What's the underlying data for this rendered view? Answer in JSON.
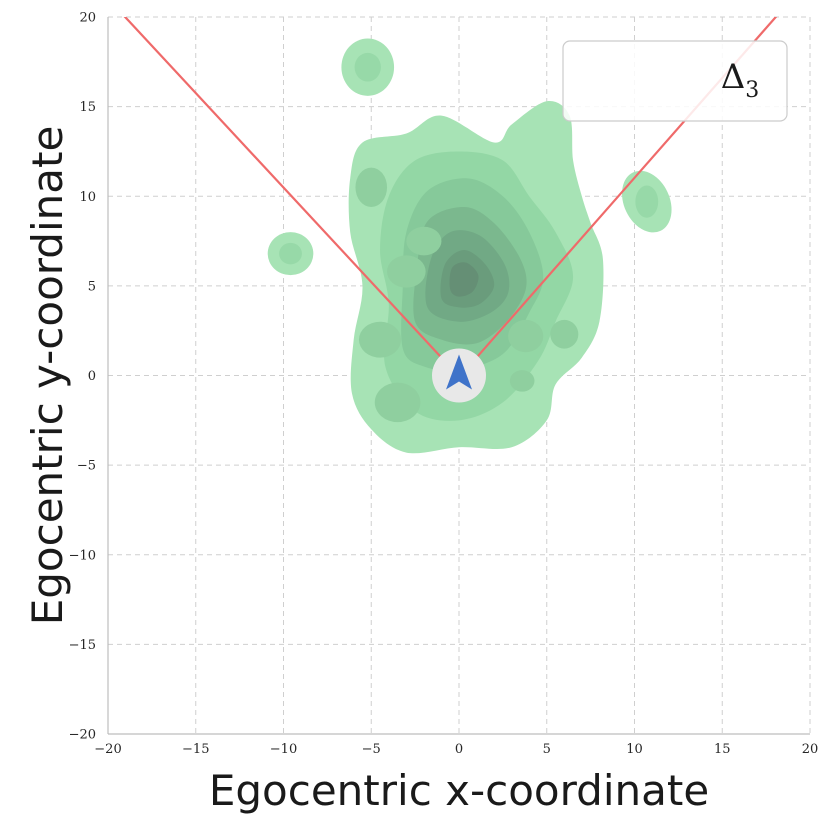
{
  "chart_data": {
    "type": "kde-density",
    "xlabel": "Egocentric x-coordinate",
    "ylabel": "Egocentric y-coordinate",
    "xlim": [
      -20,
      20
    ],
    "ylim": [
      -20,
      20
    ],
    "xticks": [
      -20,
      -15,
      -10,
      -5,
      0,
      5,
      10,
      15,
      20
    ],
    "yticks": [
      -20,
      -15,
      -10,
      -5,
      0,
      5,
      10,
      15,
      20
    ],
    "xtick_labels": [
      "−20",
      "−15",
      "−10",
      "−5",
      "0",
      "5",
      "10",
      "15",
      "20"
    ],
    "ytick_labels": [
      "−20",
      "−15",
      "−10",
      "−5",
      "0",
      "5",
      "10",
      "15",
      "20"
    ],
    "grid": true,
    "legend": {
      "label": "Δ",
      "subscript": "3",
      "placement": "upper right"
    },
    "density_color": "#5ec87f",
    "density_levels": [
      {
        "level": 1,
        "polygon": [
          [
            -6.1,
            -1
          ],
          [
            -6,
            2
          ],
          [
            -5.5,
            5
          ],
          [
            -6.2,
            8
          ],
          [
            -6.2,
            11
          ],
          [
            -5.5,
            13
          ],
          [
            -3,
            13.5
          ],
          [
            -1,
            14.5
          ],
          [
            2,
            13
          ],
          [
            3,
            14
          ],
          [
            5,
            15.3
          ],
          [
            6.3,
            14.5
          ],
          [
            6.5,
            12
          ],
          [
            7,
            10
          ],
          [
            7.5,
            8.5
          ],
          [
            8.2,
            6.5
          ],
          [
            8,
            3
          ],
          [
            7,
            1
          ],
          [
            5.5,
            -0.5
          ],
          [
            5,
            -2.5
          ],
          [
            3,
            -4
          ],
          [
            0,
            -4
          ],
          [
            -3,
            -4.3
          ],
          [
            -5,
            -3
          ],
          [
            -6.1,
            -1
          ]
        ]
      },
      {
        "level": 2,
        "polygon": [
          [
            -4.2,
            0.5
          ],
          [
            -4,
            4
          ],
          [
            -4.5,
            7
          ],
          [
            -4,
            10
          ],
          [
            -2.5,
            12
          ],
          [
            0,
            12.5
          ],
          [
            2.5,
            12
          ],
          [
            4,
            10
          ],
          [
            5.5,
            8
          ],
          [
            6.5,
            5.5
          ],
          [
            5.5,
            3
          ],
          [
            4.5,
            0.8
          ],
          [
            2.5,
            -1.5
          ],
          [
            0,
            -2.5
          ],
          [
            -2.5,
            -2
          ],
          [
            -4.2,
            0.5
          ]
        ]
      },
      {
        "level": 3,
        "polygon": [
          [
            -3.2,
            1.5
          ],
          [
            -3.2,
            5
          ],
          [
            -3,
            8
          ],
          [
            -1.8,
            10.3
          ],
          [
            0.5,
            11
          ],
          [
            2.5,
            10
          ],
          [
            4,
            8
          ],
          [
            4.8,
            5.5
          ],
          [
            4,
            3.5
          ],
          [
            2.5,
            1.2
          ],
          [
            0,
            0.3
          ],
          [
            -2,
            0.5
          ],
          [
            -3.2,
            1.5
          ]
        ]
      },
      {
        "level": 4,
        "polygon": [
          [
            -2.5,
            3
          ],
          [
            -2.4,
            6
          ],
          [
            -1.8,
            8.6
          ],
          [
            0.3,
            9.4
          ],
          [
            2,
            8.5
          ],
          [
            3.5,
            6.5
          ],
          [
            3.8,
            4.8
          ],
          [
            2.7,
            3
          ],
          [
            1,
            1.8
          ],
          [
            -1,
            2
          ],
          [
            -2.5,
            3
          ]
        ]
      },
      {
        "level": 5,
        "polygon": [
          [
            -1.8,
            3.8
          ],
          [
            -1.6,
            6.5
          ],
          [
            -0.5,
            8
          ],
          [
            1.2,
            7.8
          ],
          [
            2.6,
            6.2
          ],
          [
            2.8,
            4.6
          ],
          [
            1.8,
            3.5
          ],
          [
            0,
            3
          ],
          [
            -1.8,
            3.8
          ]
        ]
      },
      {
        "level": 6,
        "polygon": [
          [
            -1,
            4.3
          ],
          [
            -0.8,
            6.2
          ],
          [
            0.3,
            7
          ],
          [
            1.5,
            6.2
          ],
          [
            2,
            5
          ],
          [
            1.2,
            4
          ],
          [
            0,
            3.8
          ],
          [
            -1,
            4.3
          ]
        ]
      },
      {
        "level": 7,
        "polygon": [
          [
            -0.5,
            4.8
          ],
          [
            -0.4,
            6
          ],
          [
            0.4,
            6.3
          ],
          [
            1.1,
            5.6
          ],
          [
            0.8,
            4.7
          ],
          [
            0,
            4.4
          ],
          [
            -0.5,
            4.8
          ]
        ]
      }
    ],
    "density_islands": [
      {
        "center": [
          -5.2,
          17.2
        ],
        "radius": [
          1.5,
          1.6
        ]
      },
      {
        "center": [
          -9.6,
          6.8
        ],
        "radius": [
          1.3,
          1.2
        ]
      },
      {
        "center": [
          10.7,
          9.7
        ],
        "radius": [
          1.3,
          1.8
        ]
      }
    ],
    "fov_lines": {
      "color": "#ef6a6a",
      "left": [
        [
          -1,
          1
        ],
        [
          -19.5,
          20.5
        ]
      ],
      "right": [
        [
          1,
          1
        ],
        [
          18.5,
          20.5
        ]
      ]
    },
    "agent": {
      "position": [
        0,
        0
      ],
      "heading_deg": 90,
      "marker_color": "#3f73c9",
      "background": "#e8e8e8"
    }
  }
}
